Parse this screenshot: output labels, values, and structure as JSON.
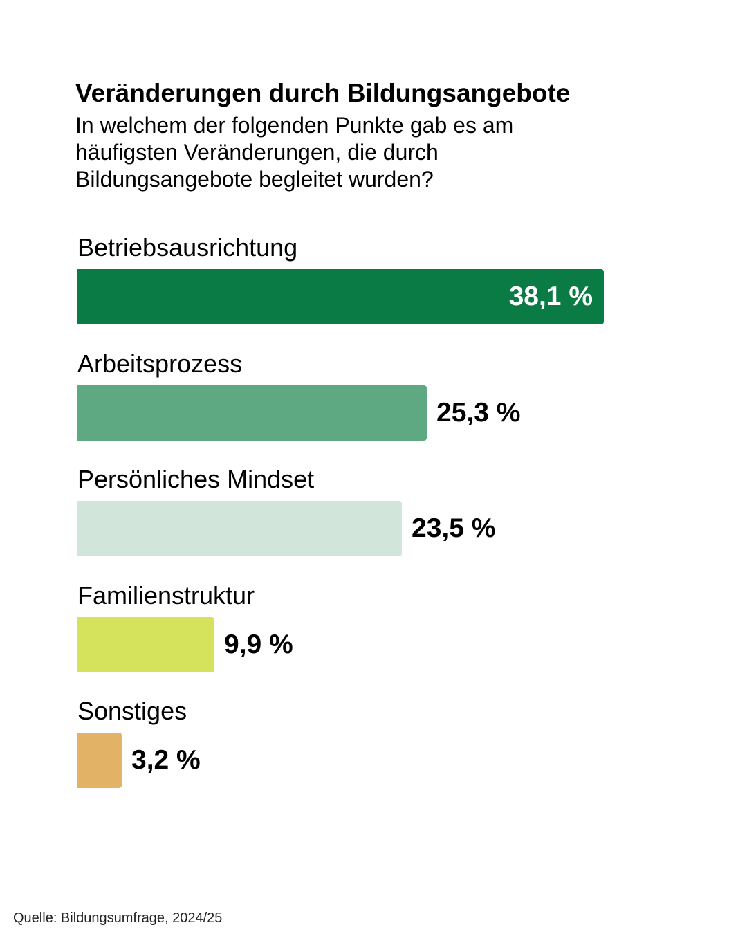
{
  "chart_data": {
    "type": "bar",
    "orientation": "horizontal",
    "title": "Veränderungen durch Bildungsangebote",
    "subtitle": "In welchem der folgenden Punkte gab es am häufigsten Veränderungen, die durch Bildungsangebote begleitet wurden?",
    "categories": [
      "Betriebsausrichtung",
      "Arbeitsprozess",
      "Persönliches Mindset",
      "Familienstruktur",
      "Sonstiges"
    ],
    "values": [
      38.1,
      25.3,
      23.5,
      9.9,
      3.2
    ],
    "value_labels": [
      "38,1 %",
      "25,3 %",
      "23,5 %",
      "9,9 %",
      "3,2 %"
    ],
    "colors": [
      "#0a7b45",
      "#5fa982",
      "#d2e5da",
      "#d5e25c",
      "#e2b367"
    ],
    "value_label_inside": [
      true,
      false,
      false,
      false,
      false
    ],
    "xlim": [
      0,
      38.1
    ],
    "grid": false,
    "legend": "none"
  },
  "source": "Quelle: Bildungsumfrage, 2024/25"
}
